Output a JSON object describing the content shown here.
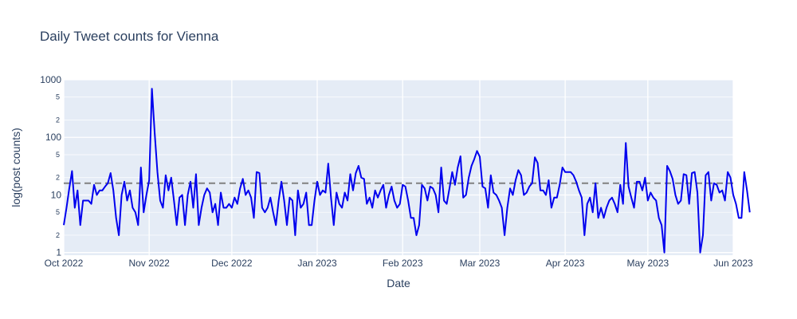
{
  "chart_data": {
    "type": "line",
    "title": "Daily Tweet counts for Vienna",
    "xlabel": "Date",
    "ylabel": "log(post counts)",
    "y_scale": "log",
    "ylim": [
      0.9,
      1000
    ],
    "xlim": [
      "2022-10-01",
      "2023-06-01"
    ],
    "grid": true,
    "legend": "none",
    "background_color": "#e5ecf6",
    "x_tick_labels": [
      "Oct 2022",
      "Nov 2022",
      "Dec 2022",
      "Jan 2023",
      "Feb 2023",
      "Mar 2023",
      "Apr 2023",
      "May 2023",
      "Jun 2023"
    ],
    "x_tick_dates": [
      "2022-10-01",
      "2022-11-01",
      "2022-12-01",
      "2023-01-01",
      "2023-02-01",
      "2023-03-01",
      "2023-04-01",
      "2023-05-01",
      "2023-06-01"
    ],
    "y_major_ticks": [
      {
        "value": 1,
        "label": "1"
      },
      {
        "value": 10,
        "label": "10"
      },
      {
        "value": 100,
        "label": "100"
      },
      {
        "value": 1000,
        "label": "1000"
      }
    ],
    "y_minor_ticks": [
      {
        "value": 2,
        "label": "2"
      },
      {
        "value": 5,
        "label": "5"
      },
      {
        "value": 20,
        "label": "2"
      },
      {
        "value": 50,
        "label": "5"
      },
      {
        "value": 200,
        "label": "2"
      },
      {
        "value": 500,
        "label": "5"
      }
    ],
    "reference_line": {
      "value": 16,
      "style": "dashed",
      "color": "#808080"
    },
    "series": [
      {
        "color": "#0000ee",
        "start_date": "2022-10-01",
        "step_days": 1,
        "values": [
          3,
          6,
          13,
          26,
          6,
          12,
          3,
          8,
          8,
          8,
          7,
          15,
          10,
          12,
          12,
          14,
          16,
          24,
          12,
          4,
          2,
          10,
          17,
          8,
          12,
          6,
          5,
          3,
          30,
          5,
          10,
          18,
          700,
          120,
          25,
          8,
          6,
          22,
          12,
          20,
          8,
          3,
          9,
          10,
          3,
          10,
          17,
          6,
          23,
          3,
          6,
          10,
          13,
          11,
          5,
          7,
          3,
          11,
          6,
          6,
          7,
          6,
          9,
          7,
          13,
          19,
          10,
          12,
          9,
          4,
          25,
          24,
          6,
          5,
          6,
          9,
          5,
          3,
          8,
          17,
          8,
          3,
          9,
          8,
          2,
          12,
          6,
          7,
          11,
          3,
          3,
          8,
          17,
          10,
          12,
          11,
          35,
          9,
          3,
          11,
          7,
          6,
          11,
          8,
          23,
          12,
          24,
          32,
          20,
          19,
          7,
          9,
          6,
          12,
          9,
          12,
          15,
          6,
          10,
          14,
          8,
          6,
          7,
          15,
          14,
          8,
          4,
          4,
          2,
          3,
          15,
          13,
          8,
          14,
          13,
          10,
          5,
          30,
          8,
          7,
          13,
          25,
          15,
          30,
          47,
          9,
          10,
          20,
          32,
          42,
          58,
          46,
          14,
          13,
          6,
          22,
          11,
          10,
          8,
          6,
          2,
          6,
          13,
          10,
          18,
          27,
          22,
          10,
          11,
          14,
          16,
          45,
          36,
          12,
          12,
          10,
          18,
          6,
          9,
          9,
          15,
          30,
          25,
          25,
          25,
          22,
          17,
          12,
          9,
          2,
          7,
          9,
          5,
          16,
          4,
          6,
          4,
          6,
          8,
          9,
          7,
          5,
          15,
          7,
          80,
          14,
          9,
          6,
          17,
          17,
          12,
          20,
          8,
          11,
          9,
          8,
          4,
          3,
          1,
          32,
          26,
          19,
          10,
          7,
          8,
          23,
          22,
          7,
          24,
          25,
          11,
          1,
          2,
          22,
          25,
          8,
          16,
          15,
          11,
          12,
          8,
          25,
          20,
          10,
          7,
          4,
          4,
          25,
          12,
          5
        ]
      }
    ]
  }
}
